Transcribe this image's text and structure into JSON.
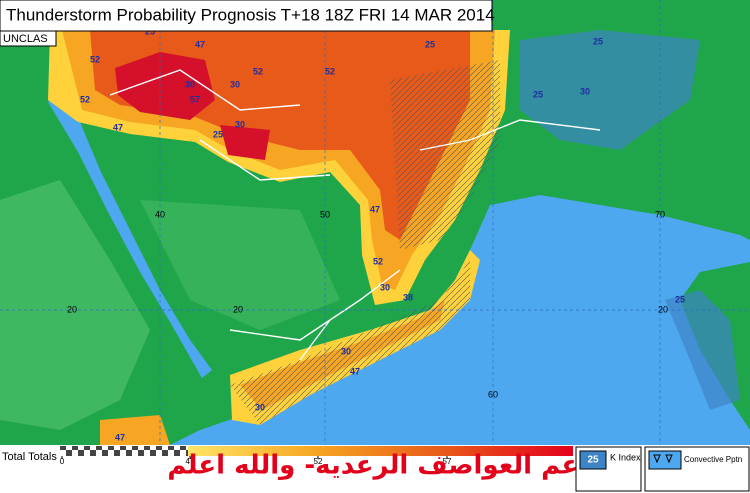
{
  "header": {
    "title": "Thunderstorm Probability Prognosis T+18 18Z FRI 14 MAR 2014",
    "classification": "UNCLAS"
  },
  "map": {
    "longitude_labels": [
      "40",
      "50",
      "60",
      "70"
    ],
    "latitude_labels": [
      "20",
      "20",
      "20"
    ],
    "contour_labels": [
      "25",
      "52",
      "57",
      "52",
      "47",
      "30",
      "52",
      "30",
      "52",
      "47",
      "30",
      "47",
      "52",
      "30",
      "25",
      "25",
      "30",
      "38",
      "30",
      "47",
      "30",
      "25",
      "25",
      "52",
      "47",
      "25"
    ]
  },
  "legend": {
    "title": "Total Totals",
    "ticks": [
      "0",
      "47",
      "52",
      "57"
    ],
    "k_index_value": "25",
    "k_index_label": "K Index",
    "convective_label": "Convective Pptn"
  },
  "watermark": "دعم العواصف الرعديه- والله اعلم"
}
